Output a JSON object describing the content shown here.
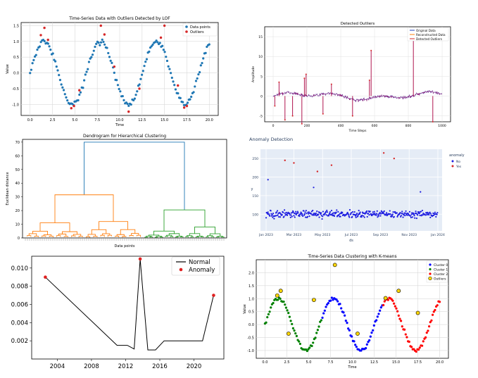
{
  "chart_data": [
    {
      "type": "scatter",
      "title": "Time-Series Data with Outliers Detected by LOF",
      "xlabel": "Time",
      "ylabel": "Value",
      "xlim": [
        -1,
        21
      ],
      "ylim": [
        -1.35,
        1.6
      ],
      "xticks": [
        "0.0",
        "2.5",
        "5.0",
        "7.5",
        "10.0",
        "12.5",
        "15.0",
        "17.5",
        "20.0"
      ],
      "yticks": [
        "-1.0",
        "-0.5",
        "0.0",
        "0.5",
        "1.0",
        "1.5"
      ],
      "grid": true,
      "legend": "top-right",
      "series": [
        {
          "name": "Data points",
          "color": "#1f77b4",
          "pattern": "sin(x)+noise, x 0..20, 150 points"
        },
        {
          "name": "Outliers",
          "color": "#d62728",
          "x": [
            1.2,
            1.6,
            2.0,
            4.6,
            4.9,
            5.5,
            7.9,
            8.3,
            9.4,
            11.0,
            12.2,
            14.6,
            15.0,
            16.5,
            17.2,
            17.5
          ],
          "y": [
            1.2,
            1.43,
            1.05,
            -1.12,
            -1.05,
            -0.55,
            1.5,
            1.22,
            0.2,
            -1.23,
            -0.5,
            1.12,
            1.5,
            -0.4,
            -1.1,
            -1.05
          ]
        }
      ],
      "legend_entries": [
        "Data points",
        "Outliers"
      ]
    },
    {
      "type": "line",
      "title": "Detected Outliers",
      "xlabel": "Time Steps",
      "ylabel": "Amplitude",
      "xlim": [
        -50,
        1050
      ],
      "ylim": [
        -6.5,
        17.5
      ],
      "xticks": [
        "0",
        "200",
        "400",
        "600",
        "800",
        "1000"
      ],
      "yticks": [
        "-5",
        "0",
        "5",
        "10",
        "15"
      ],
      "grid": true,
      "legend": "top-right",
      "series": [
        {
          "name": "Original Data",
          "color": "#1f3fbf"
        },
        {
          "name": "Reconstructed Data",
          "color": "#ff7f0e"
        },
        {
          "name": "Detected Outliers",
          "color": "#d62728"
        }
      ],
      "spikes": [
        {
          "x": 10,
          "y": -2.5
        },
        {
          "x": 35,
          "y": 3.5
        },
        {
          "x": 70,
          "y": -6.0
        },
        {
          "x": 115,
          "y": -5.0
        },
        {
          "x": 170,
          "y": -7.0
        },
        {
          "x": 185,
          "y": 4.5
        },
        {
          "x": 195,
          "y": 5.5
        },
        {
          "x": 295,
          "y": -4.5
        },
        {
          "x": 345,
          "y": 3.0
        },
        {
          "x": 470,
          "y": -5.0
        },
        {
          "x": 570,
          "y": 4.0
        },
        {
          "x": 580,
          "y": 11.5
        },
        {
          "x": 830,
          "y": 15.5
        },
        {
          "x": 945,
          "y": -6.5
        }
      ]
    },
    {
      "type": "dendrogram",
      "title": "Dendrogram for Hierarchical Clustering",
      "xlabel": "Data points",
      "ylabel": "Euclidean distance",
      "ylim": [
        0,
        72
      ],
      "yticks": [
        "0",
        "10",
        "20",
        "30",
        "40",
        "50",
        "60",
        "70"
      ],
      "merges": [
        {
          "name": "root",
          "height": 70,
          "color": "#1f77b4"
        },
        {
          "name": "orange-cluster",
          "height": 31.5,
          "color": "#ff7f0e"
        },
        {
          "name": "green-cluster",
          "height": 20.5,
          "color": "#2ca02c"
        },
        {
          "name": "orange-left",
          "height": 11,
          "color": "#ff7f0e"
        },
        {
          "name": "orange-right",
          "height": 12,
          "color": "#ff7f0e"
        },
        {
          "name": "green-right",
          "height": 8,
          "color": "#2ca02c"
        }
      ]
    },
    {
      "type": "scatter",
      "title": "Anomaly Detection",
      "xlabel": "ds",
      "ylabel": "y",
      "ylim": [
        55,
        275
      ],
      "yticks": [
        "100",
        "150",
        "200",
        "250"
      ],
      "xticks": [
        "Jan 2023",
        "Mar 2023",
        "May 2023",
        "Jul 2023",
        "Sep 2023",
        "Nov 2023",
        "Jan 2024"
      ],
      "legend_title": "anomaly",
      "legend": "right",
      "series": [
        {
          "name": "No",
          "color": "#1f1fe0",
          "pattern": "daily values near 100, 2023"
        },
        {
          "name": "Yes",
          "color": "#d62728",
          "x": [
            "2023-02-10",
            "2023-03-01",
            "2023-04-20",
            "2023-05-20",
            "2023-09-08",
            "2023-09-30"
          ],
          "y": [
            245,
            238,
            215,
            232,
            265,
            250
          ]
        }
      ],
      "blue_highs": [
        {
          "x": "2023-01-05",
          "y": 193
        },
        {
          "x": "2023-04-12",
          "y": 172
        },
        {
          "x": "2023-11-25",
          "y": 160
        }
      ]
    },
    {
      "type": "line",
      "title": "",
      "xlabel": "",
      "ylabel": "",
      "xlim": [
        2001,
        2023.5
      ],
      "ylim": [
        0,
        0.0113
      ],
      "xticks": [
        "2004",
        "2008",
        "2012",
        "2016",
        "2020"
      ],
      "yticks": [
        "0.002",
        "0.004",
        "0.006",
        "0.008",
        "0.010"
      ],
      "legend": "top-right",
      "series": [
        {
          "name": "Normal",
          "color": "#000000",
          "x": [
            2002.6,
            2011.0,
            2012.2,
            2013.0,
            2013.7,
            2014.6,
            2015.5,
            2016.5,
            2020.2,
            2021.0,
            2022.3
          ],
          "y": [
            0.009,
            0.0015,
            0.0015,
            0.0011,
            0.011,
            0.001,
            0.001,
            0.002,
            0.002,
            0.002,
            0.007
          ]
        },
        {
          "name": "Anomaly",
          "color": "#e02020",
          "x": [
            2002.6,
            2013.7,
            2022.3
          ],
          "y": [
            0.009,
            0.011,
            0.007
          ]
        }
      ]
    },
    {
      "type": "scatter",
      "title": "Time-Series Data Clustering with K-means",
      "xlabel": "Time",
      "ylabel": "Value",
      "xlim": [
        -1,
        21
      ],
      "ylim": [
        -1.3,
        2.5
      ],
      "xticks": [
        "0.0",
        "2.5",
        "5.0",
        "7.5",
        "10.0",
        "12.5",
        "15.0",
        "17.5",
        "20.0"
      ],
      "yticks": [
        "-1.0",
        "-0.5",
        "0.0",
        "0.5",
        "1.0",
        "1.5",
        "2.0"
      ],
      "grid": true,
      "legend": "top-right",
      "series": [
        {
          "name": "Cluster 0",
          "color": "#0000ff"
        },
        {
          "name": "Cluster 1",
          "color": "#008000"
        },
        {
          "name": "Cluster 2",
          "color": "#ff0000"
        },
        {
          "name": "Outliers",
          "color": "#ffd700",
          "x": [
            1.4,
            1.8,
            2.7,
            5.6,
            8.0,
            10.6,
            13.8,
            15.3,
            17.5
          ],
          "y": [
            1.12,
            1.3,
            -0.35,
            0.95,
            2.3,
            -0.35,
            1.02,
            1.3,
            0.45
          ]
        }
      ],
      "cluster_ranges": {
        "Cluster 0": [
          [
            6.5,
            13.5
          ]
        ],
        "Cluster 1": [
          [
            0,
            6.5
          ]
        ],
        "Cluster 2": [
          [
            13.5,
            20
          ]
        ]
      }
    }
  ]
}
